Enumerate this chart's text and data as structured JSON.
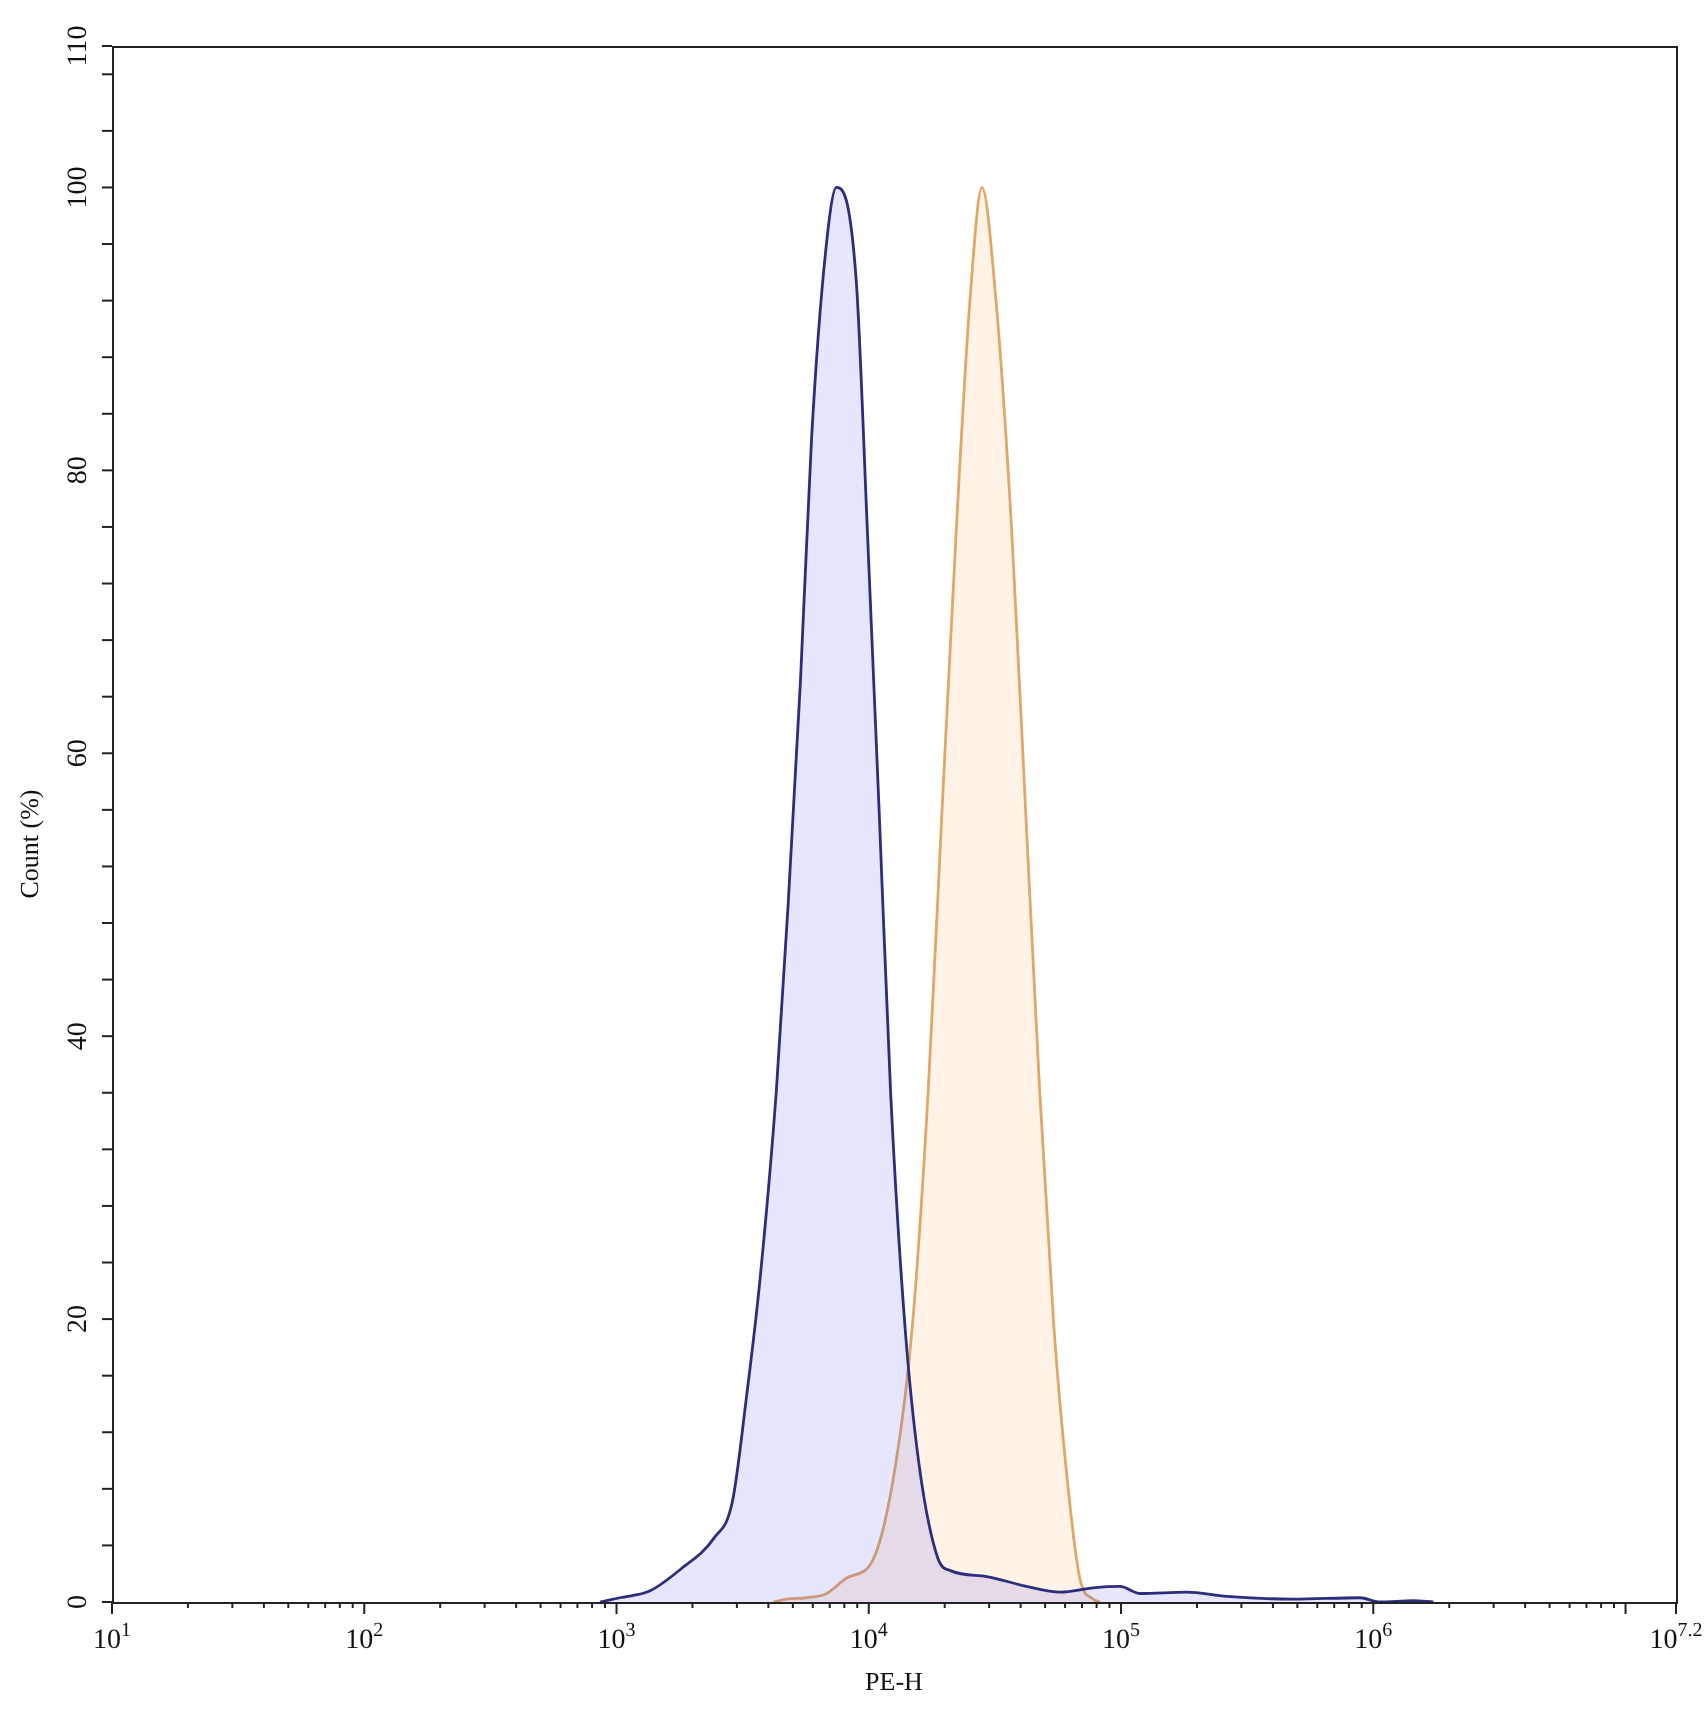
{
  "chart_data": {
    "type": "area",
    "xlabel": "PE-H",
    "ylabel": "Count (%)",
    "log": "x",
    "xlim": [
      10,
      15848932
    ],
    "ylim": [
      0,
      110
    ],
    "xticks": [
      {
        "value": 10,
        "label": "10$^{1}$"
      },
      {
        "value": 20,
        "label": null
      },
      {
        "value": 30,
        "label": null
      },
      {
        "value": 40,
        "label": null
      },
      {
        "value": 50,
        "label": null
      },
      {
        "value": 60,
        "label": null
      },
      {
        "value": 70,
        "label": null
      },
      {
        "value": 80,
        "label": null
      },
      {
        "value": 90,
        "label": null
      },
      {
        "value": 100,
        "label": "10$^{2}$"
      },
      {
        "value": 200,
        "label": null
      },
      {
        "value": 300,
        "label": null
      },
      {
        "value": 400,
        "label": null
      },
      {
        "value": 500,
        "label": null
      },
      {
        "value": 600,
        "label": null
      },
      {
        "value": 700,
        "label": null
      },
      {
        "value": 800,
        "label": null
      },
      {
        "value": 900,
        "label": null
      },
      {
        "value": 1000,
        "label": "10$^{3}$"
      },
      {
        "value": 2000,
        "label": null
      },
      {
        "value": 3000,
        "label": null
      },
      {
        "value": 4000,
        "label": null
      },
      {
        "value": 5000,
        "label": null
      },
      {
        "value": 6000,
        "label": null
      },
      {
        "value": 7000,
        "label": null
      },
      {
        "value": 8000,
        "label": null
      },
      {
        "value": 9000,
        "label": null
      },
      {
        "value": 10000,
        "label": "10$^{4}$"
      },
      {
        "value": 20000,
        "label": null
      },
      {
        "value": 30000,
        "label": null
      },
      {
        "value": 40000,
        "label": null
      },
      {
        "value": 50000,
        "label": null
      },
      {
        "value": 60000,
        "label": null
      },
      {
        "value": 70000,
        "label": null
      },
      {
        "value": 80000,
        "label": null
      },
      {
        "value": 90000,
        "label": null
      },
      {
        "value": 100000,
        "label": "10$^{5}$"
      },
      {
        "value": 200000,
        "label": null
      },
      {
        "value": 300000,
        "label": null
      },
      {
        "value": 400000,
        "label": null
      },
      {
        "value": 500000,
        "label": null
      },
      {
        "value": 600000,
        "label": null
      },
      {
        "value": 700000,
        "label": null
      },
      {
        "value": 800000,
        "label": null
      },
      {
        "value": 900000,
        "label": null
      },
      {
        "value": 1000000,
        "label": "10$^{6}$"
      },
      {
        "value": 2000000,
        "label": null
      },
      {
        "value": 3000000,
        "label": null
      },
      {
        "value": 4000000,
        "label": null
      },
      {
        "value": 5000000,
        "label": null
      },
      {
        "value": 6000000,
        "label": null
      },
      {
        "value": 7000000,
        "label": null
      },
      {
        "value": 8000000,
        "label": null
      },
      {
        "value": 9000000,
        "label": null
      },
      {
        "value": 10000000,
        "label": null
      },
      {
        "value": 15848932,
        "label": "10$^{7.2}$"
      }
    ],
    "yticks": [
      0,
      {
        "value": 4,
        "label": null
      },
      {
        "value": 8,
        "label": null
      },
      {
        "value": 12,
        "label": null
      },
      {
        "value": 16,
        "label": null
      },
      20,
      {
        "value": 24,
        "label": null
      },
      {
        "value": 28,
        "label": null
      },
      {
        "value": 32,
        "label": null
      },
      {
        "value": 36,
        "label": null
      },
      40,
      {
        "value": 44,
        "label": null
      },
      {
        "value": 48,
        "label": null
      },
      {
        "value": 52,
        "label": null
      },
      {
        "value": 56,
        "label": null
      },
      60,
      {
        "value": 64,
        "label": null
      },
      {
        "value": 68,
        "label": null
      },
      {
        "value": 72,
        "label": null
      },
      {
        "value": 76,
        "label": null
      },
      80,
      {
        "value": 84,
        "label": null
      },
      {
        "value": 88,
        "label": null
      },
      {
        "value": 92,
        "label": null
      },
      {
        "value": 96,
        "label": null
      },
      100,
      {
        "value": 104,
        "label": null
      },
      {
        "value": 108,
        "label": null
      },
      110
    ],
    "series": [
      {
        "color": "#2d2d7d",
        "x": [
          860,
          1030,
          1360,
          1790,
          2430,
          2880,
          3270,
          3710,
          4300,
          4790,
          5360,
          5930,
          6730,
          7450,
          8920,
          9880,
          11000,
          12200,
          13900,
          15800,
          18700,
          21200,
          29300,
          42200,
          57300,
          77700,
          99100,
          119000,
          182000,
          262000,
          482000,
          886000,
          1060000,
          1440000,
          1730000
        ],
        "values": [
          0,
          0.3,
          0.8,
          2.3,
          4.5,
          7.1,
          14.4,
          22.9,
          36.1,
          49.3,
          65.1,
          82.2,
          95.3,
          100,
          93.4,
          75.6,
          55.8,
          36.1,
          19.6,
          9.8,
          3.2,
          2.2,
          1.8,
          1.1,
          0.7,
          1.0,
          1.1,
          0.6,
          0.7,
          0.4,
          0.2,
          0.3,
          0,
          0.1,
          0
        ]
      },
      {
        "color": "#e0a866",
        "x": [
          4190,
          4720,
          5670,
          6810,
          8170,
          10400,
          12800,
          14900,
          17200,
          19500,
          22200,
          25200,
          28100,
          31900,
          36900,
          41900,
          47600,
          54100,
          61400,
          68800,
          77700,
          82500
        ],
        "values": [
          0,
          0.2,
          0.3,
          0.6,
          1.7,
          3.0,
          9.8,
          19.6,
          36.1,
          55.8,
          75.6,
          92.1,
          100,
          92.1,
          75.6,
          55.8,
          36.1,
          19.6,
          8.4,
          1.6,
          0.2,
          0
        ]
      }
    ]
  }
}
